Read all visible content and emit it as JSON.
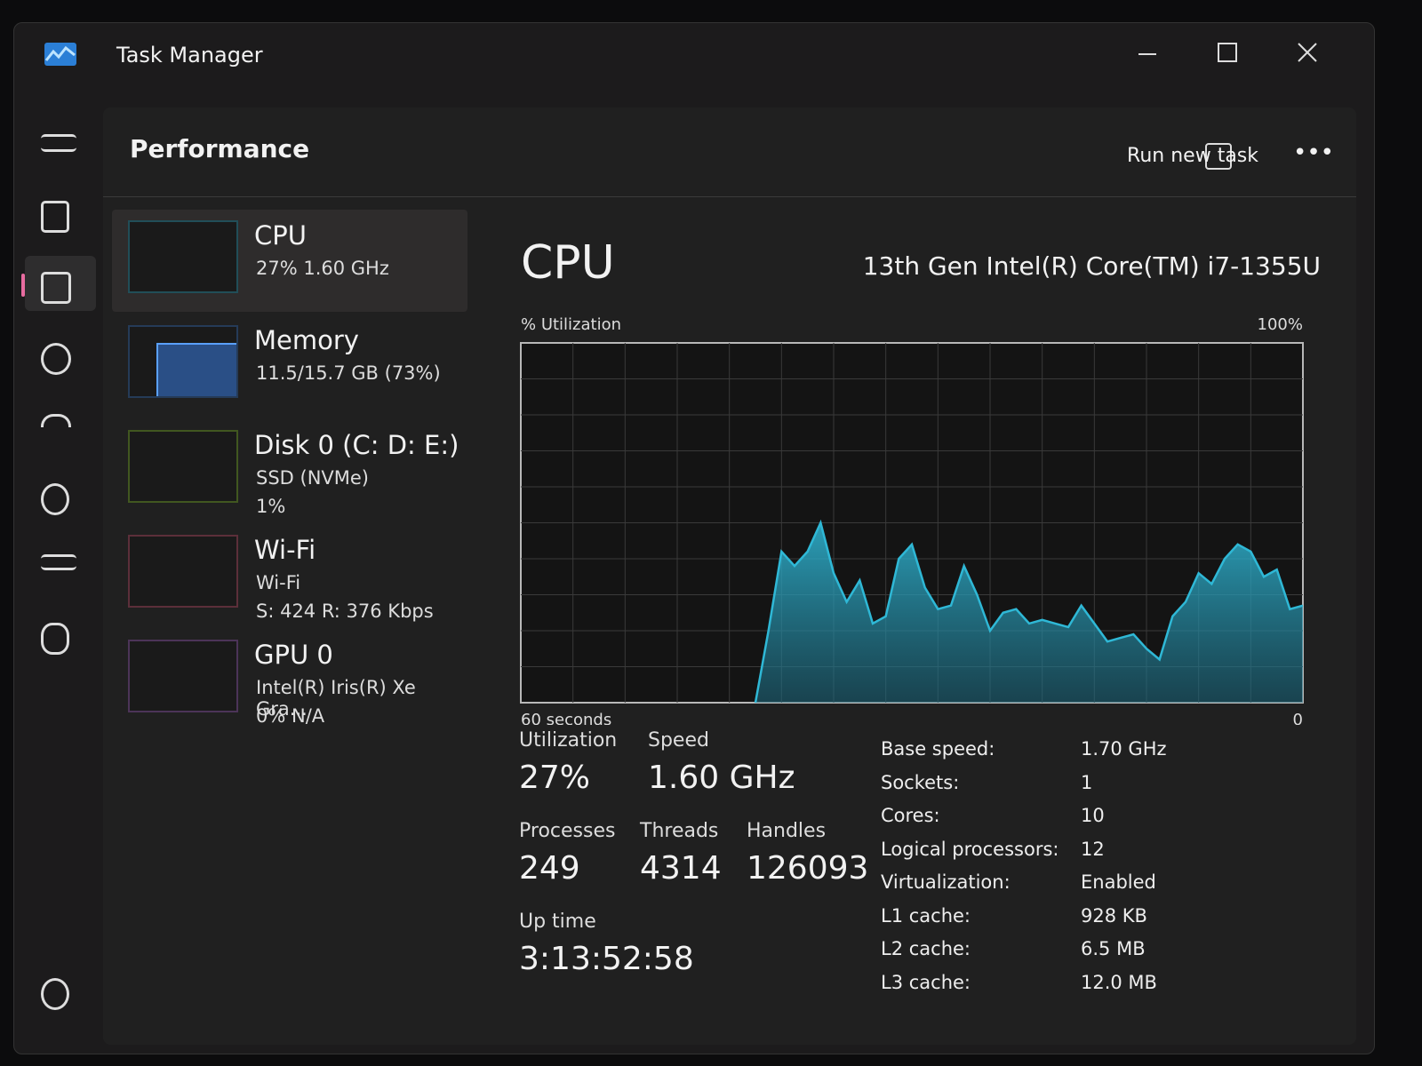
{
  "window": {
    "title": "Task Manager"
  },
  "header": {
    "title": "Performance",
    "action": "Run new task"
  },
  "devices": [
    {
      "name": "CPU",
      "lines": [
        "27%  1.60 GHz"
      ]
    },
    {
      "name": "Memory",
      "lines": [
        "11.5/15.7 GB (73%)"
      ]
    },
    {
      "name": "Disk 0 (C: D: E:)",
      "lines": [
        "SSD (NVMe)",
        "1%"
      ]
    },
    {
      "name": "Wi-Fi",
      "lines": [
        "Wi-Fi",
        "S: 424  R: 376 Kbps"
      ]
    },
    {
      "name": "GPU 0",
      "lines": [
        "Intel(R) Iris(R) Xe Gra...",
        "0%  N/A"
      ]
    }
  ],
  "main": {
    "title": "CPU",
    "model": "13th Gen Intel(R) Core(TM) i7-1355U"
  },
  "chart_data": {
    "type": "area",
    "ylabel": "% Utilization",
    "color": "#2fb8d6",
    "ylim": [
      0,
      100
    ],
    "yticks": [
      {
        "value": 100,
        "label": "100%"
      }
    ],
    "xlim": [
      60,
      0
    ],
    "xticks": [
      {
        "value": 60,
        "label": "60 seconds"
      },
      0
    ],
    "x": [
      42,
      41,
      40,
      39,
      38,
      37,
      36,
      35,
      34,
      33,
      32,
      31,
      30,
      29,
      28,
      27,
      26,
      25,
      24,
      23,
      22,
      21,
      20,
      19,
      18,
      17,
      16,
      15,
      14,
      13,
      12,
      11,
      10,
      9,
      8,
      7,
      6,
      5,
      4,
      3,
      2,
      1,
      0
    ],
    "values": [
      0,
      20,
      42,
      38,
      42,
      50,
      36,
      28,
      34,
      22,
      24,
      40,
      44,
      32,
      26,
      27,
      38,
      30,
      20,
      25,
      26,
      22,
      23,
      22,
      21,
      27,
      22,
      17,
      18,
      19,
      15,
      12,
      24,
      28,
      36,
      33,
      40,
      44,
      42,
      35,
      37,
      26,
      27
    ]
  },
  "stats": [
    {
      "label": "Utilization",
      "value": "27%"
    },
    {
      "label": "Speed",
      "value": "1.60 GHz"
    },
    {
      "label": "Processes",
      "value": "249"
    },
    {
      "label": "Threads",
      "value": "4314"
    },
    {
      "label": "Handles",
      "value": "126093"
    },
    {
      "label": "Up time",
      "value": "3:13:52:58"
    }
  ],
  "specs": [
    [
      "Base speed:",
      "1.70 GHz"
    ],
    [
      "Sockets:",
      "1"
    ],
    [
      "Cores:",
      "10"
    ],
    [
      "Logical processors:",
      "12"
    ],
    [
      "Virtualization:",
      "Enabled"
    ],
    [
      "L1 cache:",
      "928 KB"
    ],
    [
      "L2 cache:",
      "6.5 MB"
    ],
    [
      "L3 cache:",
      "12.0 MB"
    ]
  ]
}
